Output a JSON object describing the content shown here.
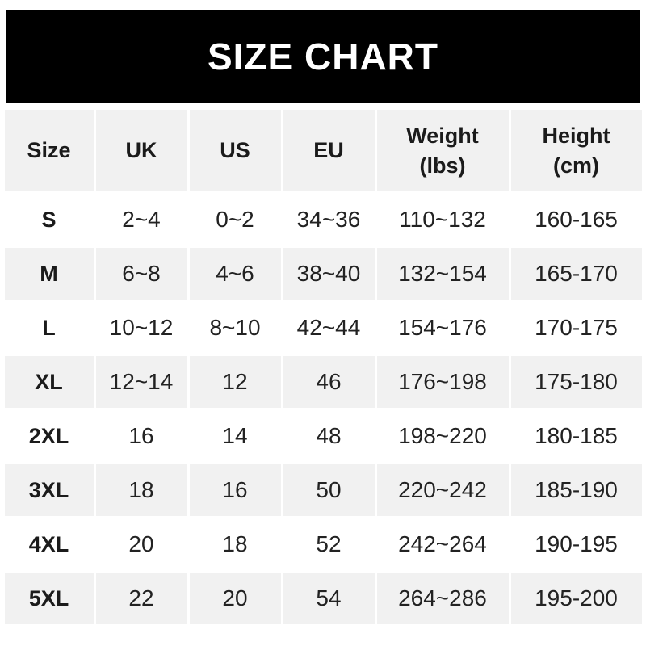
{
  "banner": {
    "title": "SIZE CHART"
  },
  "colors": {
    "banner_bg": "#000000",
    "banner_text": "#ffffff",
    "row_alt_bg": "#f1f1f1",
    "row_bg": "#ffffff",
    "text": "#1e1e1e"
  },
  "table": {
    "header_labels": [
      "Size",
      "UK",
      "US",
      "EU",
      "Weight\n(lbs)",
      "Height\n(cm)"
    ]
  },
  "chart_data": {
    "type": "table",
    "title": "SIZE CHART",
    "columns": [
      "Size",
      "UK",
      "US",
      "EU",
      "Weight (lbs)",
      "Height (cm)"
    ],
    "rows": [
      [
        "S",
        "2~4",
        "0~2",
        "34~36",
        "110~132",
        "160-165"
      ],
      [
        "M",
        "6~8",
        "4~6",
        "38~40",
        "132~154",
        "165-170"
      ],
      [
        "L",
        "10~12",
        "8~10",
        "42~44",
        "154~176",
        "170-175"
      ],
      [
        "XL",
        "12~14",
        "12",
        "46",
        "176~198",
        "175-180"
      ],
      [
        "2XL",
        "16",
        "14",
        "48",
        "198~220",
        "180-185"
      ],
      [
        "3XL",
        "18",
        "16",
        "50",
        "220~242",
        "185-190"
      ],
      [
        "4XL",
        "20",
        "18",
        "52",
        "242~264",
        "190-195"
      ],
      [
        "5XL",
        "22",
        "20",
        "54",
        "264~286",
        "195-200"
      ]
    ]
  }
}
